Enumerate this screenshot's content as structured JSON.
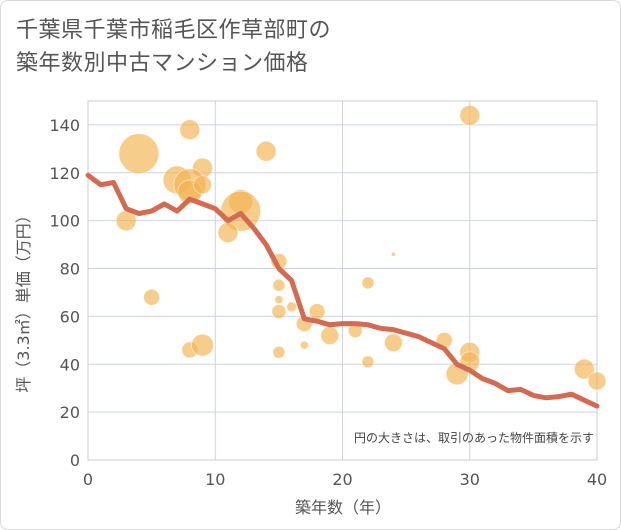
{
  "title_line1": "千葉県千葉市稲毛区作草部町の",
  "title_line2": "築年数別中古マンション価格",
  "chart_data": {
    "type": "scatter",
    "xlabel": "築年数（年）",
    "ylabel": "坪（3.3㎡）単価（万円）",
    "xlim": [
      0,
      40
    ],
    "ylim": [
      0,
      150
    ],
    "x_ticks": [
      0,
      10,
      20,
      30,
      40
    ],
    "y_ticks": [
      0,
      20,
      40,
      60,
      80,
      100,
      120,
      140
    ],
    "grid": true,
    "note": "円の大きさは、取引のあった物件面積を示す",
    "colors": {
      "bubble": "#f2b24e",
      "line": "#d46a50",
      "grid": "#c9d4e2",
      "plot_border": "#cccccc"
    },
    "bubbles": [
      {
        "x": 4,
        "y": 128,
        "size": 20
      },
      {
        "x": 8,
        "y": 138,
        "size": 10
      },
      {
        "x": 30,
        "y": 144,
        "size": 10
      },
      {
        "x": 14,
        "y": 129,
        "size": 10
      },
      {
        "x": 9,
        "y": 122,
        "size": 10
      },
      {
        "x": 7,
        "y": 117,
        "size": 14
      },
      {
        "x": 8,
        "y": 115,
        "size": 16
      },
      {
        "x": 8,
        "y": 112,
        "size": 12
      },
      {
        "x": 9,
        "y": 115,
        "size": 9
      },
      {
        "x": 12,
        "y": 108,
        "size": 12
      },
      {
        "x": 12,
        "y": 104,
        "size": 20
      },
      {
        "x": 11,
        "y": 95,
        "size": 10
      },
      {
        "x": 3,
        "y": 100,
        "size": 10
      },
      {
        "x": 15,
        "y": 83,
        "size": 8
      },
      {
        "x": 15,
        "y": 73,
        "size": 6
      },
      {
        "x": 15,
        "y": 67,
        "size": 4
      },
      {
        "x": 15,
        "y": 62,
        "size": 7
      },
      {
        "x": 16,
        "y": 64,
        "size": 5
      },
      {
        "x": 17,
        "y": 57,
        "size": 8
      },
      {
        "x": 18,
        "y": 62,
        "size": 8
      },
      {
        "x": 5,
        "y": 68,
        "size": 8
      },
      {
        "x": 22,
        "y": 74,
        "size": 6
      },
      {
        "x": 24,
        "y": 86,
        "size": 2
      },
      {
        "x": 19,
        "y": 52,
        "size": 9
      },
      {
        "x": 21,
        "y": 54,
        "size": 7
      },
      {
        "x": 24,
        "y": 49,
        "size": 9
      },
      {
        "x": 28,
        "y": 50,
        "size": 8
      },
      {
        "x": 30,
        "y": 45,
        "size": 10
      },
      {
        "x": 30,
        "y": 41,
        "size": 10
      },
      {
        "x": 29,
        "y": 36,
        "size": 11
      },
      {
        "x": 22,
        "y": 41,
        "size": 6
      },
      {
        "x": 8,
        "y": 46,
        "size": 8
      },
      {
        "x": 9,
        "y": 48,
        "size": 11
      },
      {
        "x": 15,
        "y": 45,
        "size": 6
      },
      {
        "x": 17,
        "y": 48,
        "size": 4
      },
      {
        "x": 39,
        "y": 38,
        "size": 10
      },
      {
        "x": 40,
        "y": 33,
        "size": 9
      }
    ],
    "trend_x": [
      0,
      1,
      2,
      3,
      4,
      5,
      6,
      7,
      8,
      9,
      10,
      11,
      12,
      13,
      14,
      15,
      16,
      17,
      18,
      19,
      20,
      21,
      22,
      23,
      24,
      25,
      26,
      27,
      28,
      29,
      30,
      31,
      32,
      33,
      34,
      35,
      36,
      37,
      38,
      39,
      40
    ],
    "trend_y": [
      119,
      115,
      116,
      105,
      103,
      104,
      107,
      104,
      109,
      107,
      105,
      100,
      103,
      97,
      90,
      80,
      75,
      59,
      58,
      56.5,
      57,
      57,
      56.5,
      55,
      54.5,
      53,
      51.5,
      49,
      46.5,
      40,
      37.5,
      34,
      32,
      29,
      29.5,
      27,
      26,
      26.5,
      27.5,
      25,
      22.5
    ]
  }
}
